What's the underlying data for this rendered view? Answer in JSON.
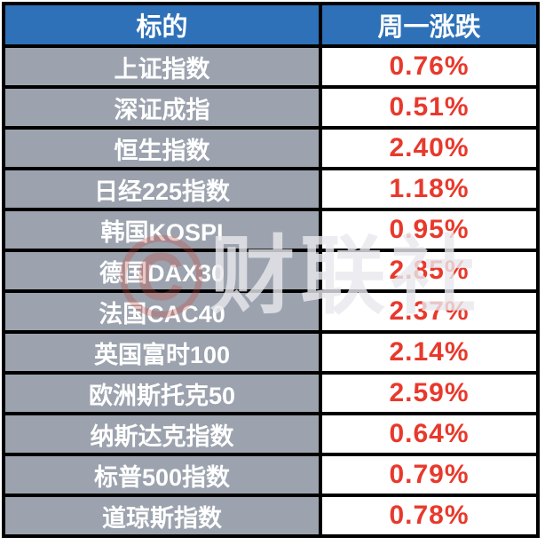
{
  "table": {
    "header": {
      "target": "标的",
      "change": "周一涨跌"
    },
    "rows": [
      {
        "name": "上证指数",
        "change": "0.76%"
      },
      {
        "name": "深证成指",
        "change": "0.51%"
      },
      {
        "name": "恒生指数",
        "change": "2.40%"
      },
      {
        "name": "日经225指数",
        "change": "1.18%"
      },
      {
        "name": "韩国KOSPI",
        "change": "0.95%"
      },
      {
        "name": "德国DAX30",
        "change": "2.85%"
      },
      {
        "name": "法国CAC40",
        "change": "2.37%"
      },
      {
        "name": "英国富时100",
        "change": "2.14%"
      },
      {
        "name": "欧洲斯托克50",
        "change": "2.59%"
      },
      {
        "name": "纳斯达克指数",
        "change": "0.64%"
      },
      {
        "name": "标普500指数",
        "change": "0.79%"
      },
      {
        "name": "道琼斯指数",
        "change": "0.78%"
      }
    ]
  },
  "watermark": {
    "logo": "©",
    "text": "财联社"
  },
  "colors": {
    "header_bg": "#2E71B8",
    "name_bg": "#9CA3AE",
    "value_color": "#E8392C",
    "border": "#000000"
  },
  "chart_data": {
    "type": "table",
    "title": "",
    "columns": [
      "标的",
      "周一涨跌"
    ],
    "rows": [
      [
        "上证指数",
        "0.76%"
      ],
      [
        "深证成指",
        "0.51%"
      ],
      [
        "恒生指数",
        "2.40%"
      ],
      [
        "日经225指数",
        "1.18%"
      ],
      [
        "韩国KOSPI",
        "0.95%"
      ],
      [
        "德国DAX30",
        "2.85%"
      ],
      [
        "法国CAC40",
        "2.37%"
      ],
      [
        "英国富时100",
        "2.14%"
      ],
      [
        "欧洲斯托克50",
        "2.59%"
      ],
      [
        "纳斯达克指数",
        "0.64%"
      ],
      [
        "标普500指数",
        "0.79%"
      ],
      [
        "道琼斯指数",
        "0.78%"
      ]
    ],
    "changes_percent": [
      0.76,
      0.51,
      2.4,
      1.18,
      0.95,
      2.85,
      2.37,
      2.14,
      2.59,
      0.64,
      0.79,
      0.78
    ]
  }
}
